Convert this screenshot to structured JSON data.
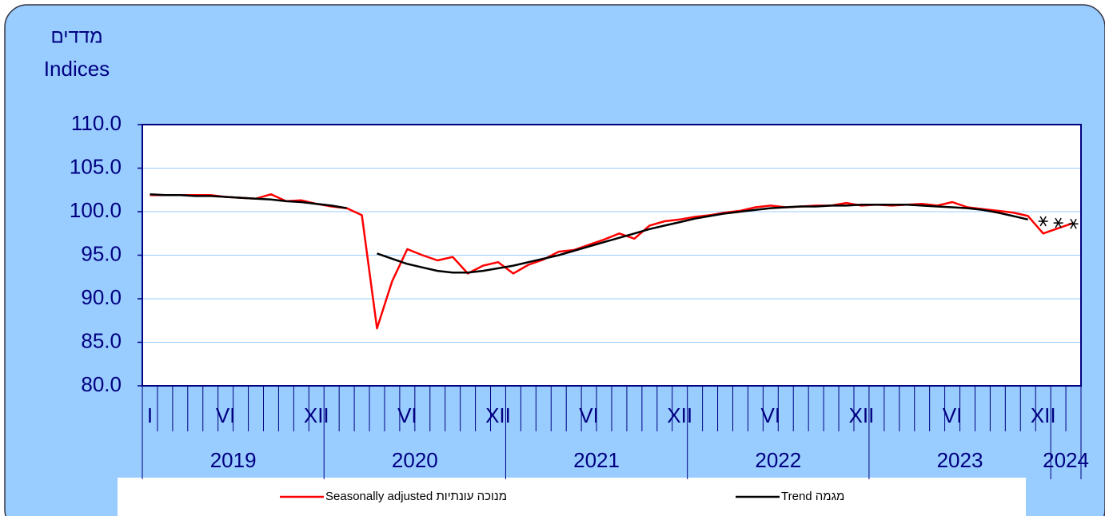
{
  "chart_data": {
    "type": "line",
    "y_label_he": "מדדים",
    "y_label_en": "Indices",
    "categories": [
      "I",
      null,
      null,
      null,
      null,
      "VI",
      null,
      null,
      null,
      null,
      null,
      "XII",
      null,
      null,
      null,
      null,
      null,
      "VI",
      null,
      null,
      null,
      null,
      null,
      "XII",
      null,
      null,
      null,
      null,
      null,
      "VI",
      null,
      null,
      null,
      null,
      null,
      "XII",
      null,
      null,
      null,
      null,
      null,
      "VI",
      null,
      null,
      null,
      null,
      null,
      "XII",
      null,
      null,
      null,
      null,
      null,
      "VI",
      null,
      null,
      null,
      null,
      null,
      "XII",
      null,
      null
    ],
    "years": [
      "2019",
      "2020",
      "2021",
      "2022",
      "2023",
      "2024"
    ],
    "ylim": [
      80,
      110
    ],
    "yticks": [
      {
        "value": 80,
        "label": "80.0"
      },
      {
        "value": 85,
        "label": "85.0"
      },
      {
        "value": 90,
        "label": "90.0"
      },
      {
        "value": 95,
        "label": "95.0"
      },
      {
        "value": 100,
        "label": "100.0"
      },
      {
        "value": 105,
        "label": "105.0"
      },
      {
        "value": 110,
        "label": "110.0"
      }
    ],
    "grid": true,
    "series": [
      {
        "name": "Seasonally adjusted  מנוכה עונתיות",
        "color": "#ff0000",
        "values": [
          101.9,
          101.9,
          101.9,
          101.9,
          101.9,
          101.7,
          101.6,
          101.5,
          102.0,
          101.2,
          101.3,
          100.9,
          100.6,
          100.4,
          99.6,
          86.6,
          92.0,
          95.7,
          95.0,
          94.4,
          94.8,
          92.9,
          93.8,
          94.2,
          92.9,
          93.9,
          94.5,
          95.4,
          95.6,
          96.2,
          96.8,
          97.5,
          96.9,
          98.4,
          98.9,
          99.1,
          99.4,
          99.6,
          99.9,
          100.1,
          100.5,
          100.7,
          100.5,
          100.6,
          100.7,
          100.7,
          101.0,
          100.7,
          100.8,
          100.7,
          100.8,
          100.9,
          100.7,
          101.1,
          100.5,
          100.3,
          100.1,
          99.9,
          99.5,
          97.5,
          98.1,
          98.7
        ]
      },
      {
        "name": "Trend  מגמה",
        "color": "#000000",
        "values": [
          102.0,
          101.9,
          101.9,
          101.8,
          101.8,
          101.7,
          101.6,
          101.5,
          101.4,
          101.2,
          101.1,
          100.9,
          100.7,
          100.4,
          null,
          95.2,
          94.6,
          94.0,
          93.6,
          93.2,
          93.0,
          93.0,
          93.2,
          93.5,
          93.8,
          94.2,
          94.6,
          95.0,
          95.5,
          96.0,
          96.5,
          97.0,
          97.5,
          98.0,
          98.4,
          98.8,
          99.2,
          99.5,
          99.8,
          100.0,
          100.2,
          100.4,
          100.5,
          100.6,
          100.6,
          100.7,
          100.7,
          100.8,
          100.8,
          100.8,
          100.8,
          100.7,
          100.6,
          100.5,
          100.4,
          100.2,
          99.9,
          99.5,
          99.1,
          null,
          null,
          null
        ]
      },
      {
        "color": "#000000",
        "marker": "asterisk",
        "values": [
          null,
          null,
          null,
          null,
          null,
          null,
          null,
          null,
          null,
          null,
          null,
          null,
          null,
          null,
          null,
          null,
          null,
          null,
          null,
          null,
          null,
          null,
          null,
          null,
          null,
          null,
          null,
          null,
          null,
          null,
          null,
          null,
          null,
          null,
          null,
          null,
          null,
          null,
          null,
          null,
          null,
          null,
          null,
          null,
          null,
          null,
          null,
          null,
          null,
          null,
          null,
          null,
          null,
          null,
          null,
          null,
          null,
          null,
          null,
          98.9,
          98.7,
          98.6
        ]
      }
    ]
  }
}
